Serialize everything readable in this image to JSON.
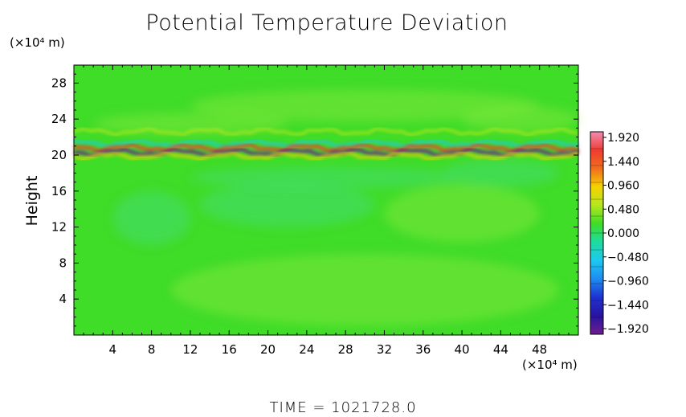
{
  "title": "Potential Temperature Deviation",
  "time_label": "TIME  =  1021728.0",
  "colors": {
    "background_green": "#3fdc28",
    "axis": "#000000"
  },
  "chart_data": {
    "type": "heatmap",
    "title": "Potential Temperature Deviation",
    "xlabel": "",
    "ylabel": "Height",
    "x_unit": "(×10⁴ m)",
    "y_unit": "(×10⁴ m)",
    "xlim": [
      0,
      52
    ],
    "ylim": [
      0,
      30
    ],
    "x_ticks": [
      "4",
      "8",
      "12",
      "16",
      "20",
      "24",
      "28",
      "32",
      "36",
      "40",
      "44",
      "48"
    ],
    "y_ticks": [
      "4",
      "8",
      "12",
      "16",
      "20",
      "24",
      "28"
    ],
    "colorbar": {
      "ticks": [
        "1.920",
        "1.440",
        "0.960",
        "0.480",
        "0.000",
        "−0.480",
        "−0.960",
        "−1.440",
        "−1.920"
      ],
      "stops": [
        "#f08cb4",
        "#f03c32",
        "#f06e1e",
        "#f5d200",
        "#b4e61e",
        "#3fdc28",
        "#1edca0",
        "#1ec8f0",
        "#1e8cf0",
        "#1e32d2",
        "#2814a0",
        "#6e1e8c"
      ]
    },
    "features": [
      {
        "type": "band",
        "description_free": true,
        "y": 22.6,
        "value": 0.6
      },
      {
        "type": "band",
        "y": 21.3,
        "value": -0.5
      },
      {
        "type": "band",
        "y": 20.8,
        "value": 1.4
      },
      {
        "type": "band",
        "y": 20.3,
        "value": -1.9
      },
      {
        "type": "band",
        "y": 19.9,
        "value": 1.0
      }
    ]
  }
}
